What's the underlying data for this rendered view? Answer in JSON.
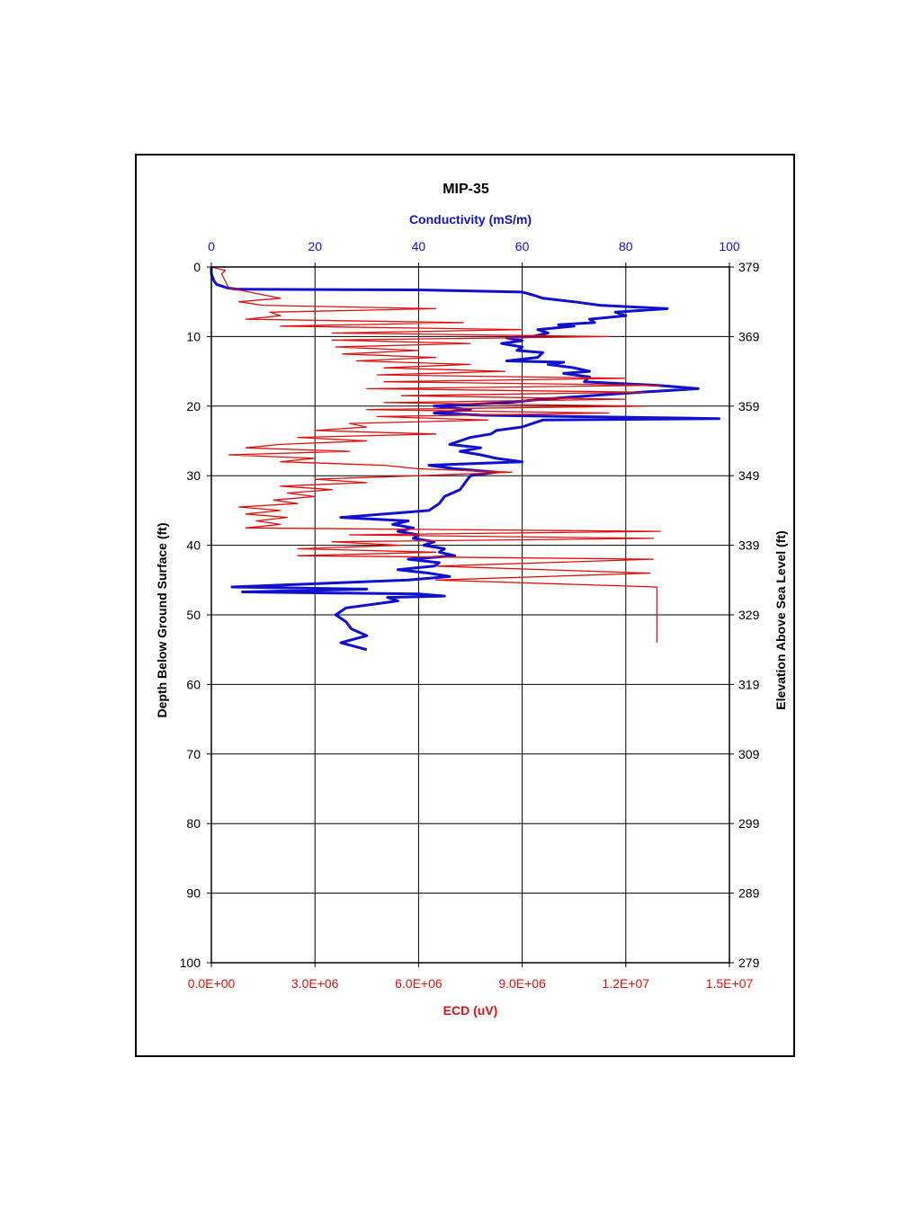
{
  "chart_data": {
    "type": "line",
    "title": "MIP-35",
    "top_axis": {
      "label": "Conductivity (mS/m)",
      "range": [
        0,
        100
      ],
      "ticks": [
        "0",
        "20",
        "40",
        "60",
        "80",
        "100"
      ]
    },
    "bottom_axis": {
      "label": "ECD (uV)",
      "range": [
        0,
        15000000
      ],
      "ticks": [
        "0.0E+00",
        "3.0E+06",
        "6.0E+06",
        "9.0E+06",
        "1.2E+07",
        "1.5E+07"
      ]
    },
    "left_axis": {
      "label": "Depth Below Ground Surface (ft)",
      "range": [
        0,
        100
      ],
      "ticks": [
        "0",
        "10",
        "20",
        "30",
        "40",
        "50",
        "60",
        "70",
        "80",
        "90",
        "100"
      ]
    },
    "right_axis": {
      "label": "Elevation Above Sea Level (ft)",
      "ticks": [
        "379",
        "369",
        "359",
        "349",
        "339",
        "329",
        "319",
        "309",
        "299",
        "289",
        "279"
      ]
    },
    "grid": true,
    "colors": {
      "conductivity": "#1010d0",
      "ecd": "#e01010"
    },
    "series": [
      {
        "axis": "conductivity",
        "points": [
          [
            0,
            0
          ],
          [
            0,
            1
          ],
          [
            0.5,
            2
          ],
          [
            1,
            2.5
          ],
          [
            3,
            3
          ],
          [
            5,
            3.2
          ],
          [
            40,
            3.3
          ],
          [
            60,
            3.6
          ],
          [
            62,
            4
          ],
          [
            64,
            4.5
          ],
          [
            70,
            5
          ],
          [
            75,
            5.5
          ],
          [
            88,
            6
          ],
          [
            78,
            6.5
          ],
          [
            80,
            7
          ],
          [
            73,
            7.5
          ],
          [
            74,
            8
          ],
          [
            67,
            8.3
          ],
          [
            70,
            8.5
          ],
          [
            63,
            9
          ],
          [
            65,
            9.5
          ],
          [
            62,
            10
          ],
          [
            57,
            10.2
          ],
          [
            60,
            10.6
          ],
          [
            56,
            11
          ],
          [
            60,
            11.5
          ],
          [
            59,
            12
          ],
          [
            64,
            12.3
          ],
          [
            63,
            13
          ],
          [
            57,
            13.5
          ],
          [
            68,
            13.7
          ],
          [
            65,
            14
          ],
          [
            70,
            14.5
          ],
          [
            73,
            15
          ],
          [
            68,
            15.3
          ],
          [
            73,
            15.8
          ],
          [
            72,
            16.5
          ],
          [
            86,
            17
          ],
          [
            94,
            17.5
          ],
          [
            83,
            18
          ],
          [
            73,
            18.5
          ],
          [
            64,
            19
          ],
          [
            57,
            19.5
          ],
          [
            43,
            20
          ],
          [
            50,
            20.5
          ],
          [
            43,
            21
          ],
          [
            52,
            21.3
          ],
          [
            98,
            21.8
          ],
          [
            64,
            22
          ],
          [
            62,
            22.5
          ],
          [
            60,
            23
          ],
          [
            55,
            23.5
          ],
          [
            54,
            24
          ],
          [
            50,
            24.5
          ],
          [
            48,
            25
          ],
          [
            46,
            25.5
          ],
          [
            52,
            26
          ],
          [
            48,
            26.5
          ],
          [
            52,
            27
          ],
          [
            55,
            27.5
          ],
          [
            60,
            28
          ],
          [
            42,
            28.5
          ],
          [
            47,
            29
          ],
          [
            55,
            29.5
          ],
          [
            50,
            30
          ],
          [
            49,
            31
          ],
          [
            48,
            32
          ],
          [
            45,
            33
          ],
          [
            44,
            34
          ],
          [
            42,
            35
          ],
          [
            25,
            36
          ],
          [
            38,
            36.5
          ],
          [
            35,
            37
          ],
          [
            39,
            37.5
          ],
          [
            36,
            38
          ],
          [
            40,
            38.5
          ],
          [
            39,
            39
          ],
          [
            43,
            39.5
          ],
          [
            41,
            40
          ],
          [
            45,
            40.5
          ],
          [
            44,
            41
          ],
          [
            47,
            41.5
          ],
          [
            38,
            42
          ],
          [
            44,
            42.5
          ],
          [
            43,
            43
          ],
          [
            36,
            43.5
          ],
          [
            42,
            44
          ],
          [
            46,
            44.5
          ],
          [
            38,
            45
          ],
          [
            4,
            46
          ],
          [
            30,
            46.3
          ],
          [
            6,
            46.7
          ],
          [
            40,
            47
          ],
          [
            45,
            47.3
          ],
          [
            34,
            47.5
          ],
          [
            36,
            48
          ],
          [
            26,
            49
          ],
          [
            24,
            50
          ],
          [
            26,
            51
          ],
          [
            27,
            52
          ],
          [
            30,
            53
          ],
          [
            25,
            54
          ],
          [
            30,
            55
          ]
        ]
      },
      {
        "axis": "ecd",
        "points": [
          [
            0,
            0
          ],
          [
            400000,
            0.5
          ],
          [
            300000,
            1
          ],
          [
            400000,
            2
          ],
          [
            500000,
            3
          ],
          [
            1500000,
            4
          ],
          [
            2000000,
            4.5
          ],
          [
            800000,
            5
          ],
          [
            1500000,
            5.5
          ],
          [
            6500000,
            6
          ],
          [
            1700000,
            6.5
          ],
          [
            2000000,
            7
          ],
          [
            1000000,
            7.5
          ],
          [
            7300000,
            8
          ],
          [
            2000000,
            8.5
          ],
          [
            9000000,
            9
          ],
          [
            3500000,
            9.5
          ],
          [
            11500000,
            10
          ],
          [
            3500000,
            10.5
          ],
          [
            7500000,
            11
          ],
          [
            3600000,
            11.5
          ],
          [
            6000000,
            12
          ],
          [
            3800000,
            12.5
          ],
          [
            6500000,
            13
          ],
          [
            4200000,
            13.5
          ],
          [
            7500000,
            14
          ],
          [
            5000000,
            14.5
          ],
          [
            8500000,
            15
          ],
          [
            4800000,
            15.5
          ],
          [
            12000000,
            16
          ],
          [
            5000000,
            16.5
          ],
          [
            13000000,
            17
          ],
          [
            4500000,
            17.5
          ],
          [
            12500000,
            18
          ],
          [
            5500000,
            18.5
          ],
          [
            12000000,
            19
          ],
          [
            5000000,
            19.5
          ],
          [
            12500000,
            20
          ],
          [
            4500000,
            20.5
          ],
          [
            11500000,
            21
          ],
          [
            4800000,
            21.5
          ],
          [
            8000000,
            22
          ],
          [
            4000000,
            22.5
          ],
          [
            4500000,
            23
          ],
          [
            3000000,
            23.5
          ],
          [
            6500000,
            24
          ],
          [
            2500000,
            24.5
          ],
          [
            4500000,
            25
          ],
          [
            2000000,
            25.5
          ],
          [
            1000000,
            26
          ],
          [
            4000000,
            26.5
          ],
          [
            500000,
            27
          ],
          [
            3000000,
            27.5
          ],
          [
            2000000,
            28
          ],
          [
            5000000,
            28.5
          ],
          [
            6000000,
            29
          ],
          [
            8700000,
            29.5
          ],
          [
            6000000,
            30
          ],
          [
            3000000,
            30.5
          ],
          [
            4500000,
            31
          ],
          [
            2000000,
            31.5
          ],
          [
            3500000,
            32
          ],
          [
            2200000,
            32.5
          ],
          [
            3000000,
            33
          ],
          [
            1800000,
            33.5
          ],
          [
            2500000,
            34
          ],
          [
            800000,
            34.5
          ],
          [
            2000000,
            35
          ],
          [
            1000000,
            35.5
          ],
          [
            2200000,
            36
          ],
          [
            1300000,
            36.5
          ],
          [
            2000000,
            37
          ],
          [
            1000000,
            37.5
          ],
          [
            13000000,
            38
          ],
          [
            4000000,
            38.5
          ],
          [
            12800000,
            39
          ],
          [
            3500000,
            39.5
          ],
          [
            5500000,
            40
          ],
          [
            2500000,
            40.5
          ],
          [
            6500000,
            41
          ],
          [
            2500000,
            41.5
          ],
          [
            12800000,
            42
          ],
          [
            6500000,
            43
          ],
          [
            12700000,
            44
          ],
          [
            6500000,
            45
          ],
          [
            12900000,
            46
          ],
          [
            12900000,
            47
          ],
          [
            12900000,
            54
          ]
        ]
      }
    ]
  }
}
